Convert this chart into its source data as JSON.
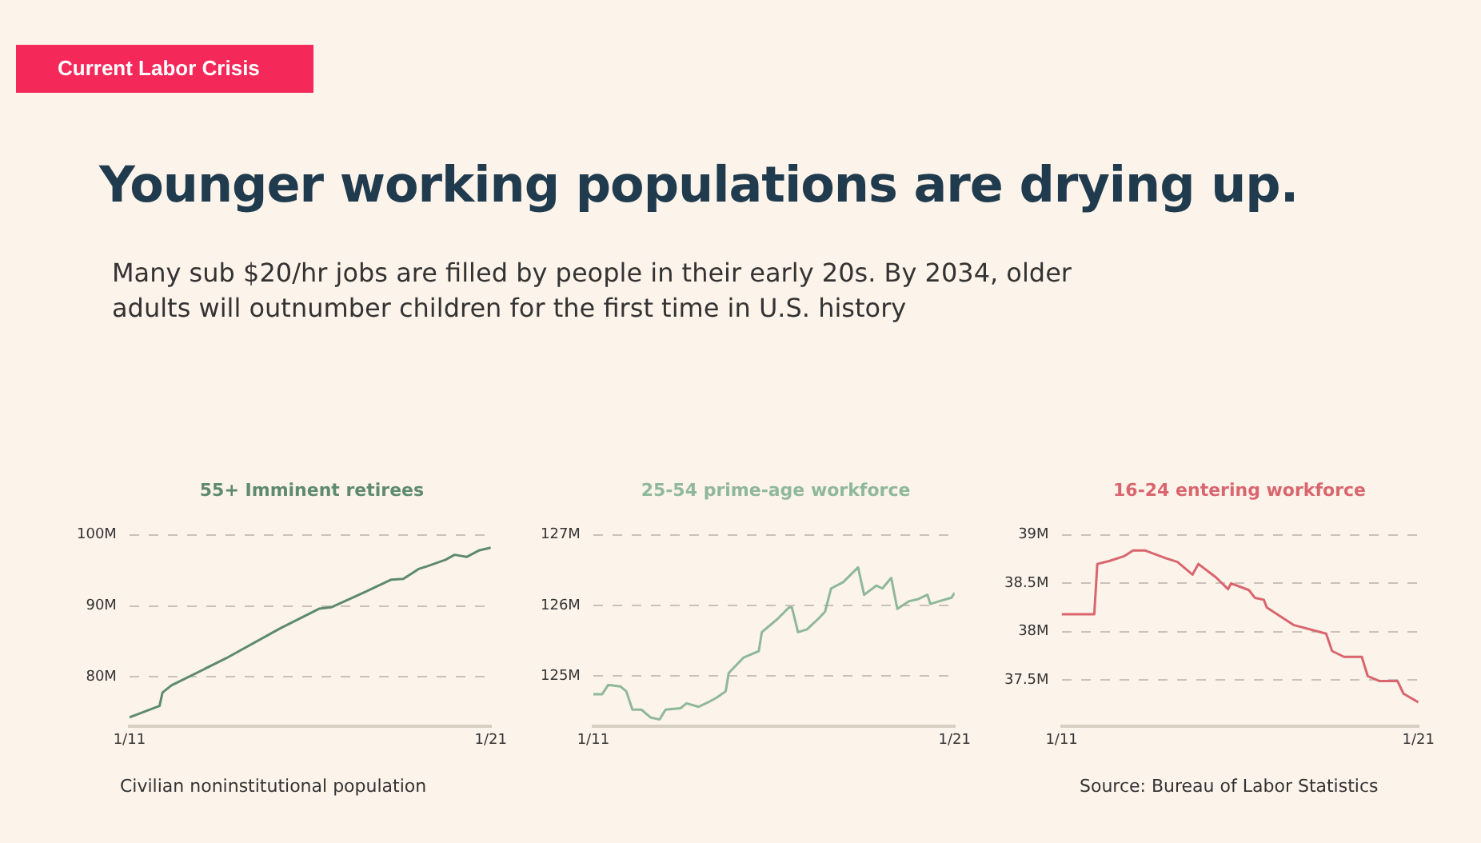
{
  "chart_data": [
    {
      "type": "other",
      "title": "Younger working populations are drying up.",
      "subtitle": "Many sub $20/hr jobs are filled by people in their early 20s. By 2034, older adults will outnumber children for the first time in U.S. history",
      "annotations": [
        "Current Labor Crisis"
      ]
    },
    {
      "type": "line",
      "title": "55+ Imminent retirees",
      "x": [
        "2011-01",
        "2011-11",
        "2011-12",
        "2012-03",
        "2013-09",
        "2015-03",
        "2016-04",
        "2016-08",
        "2017-07",
        "2018-04",
        "2018-08",
        "2019-01",
        "2019-04",
        "2019-10",
        "2020-01",
        "2020-05",
        "2020-09",
        "2021-01"
      ],
      "series": [
        {
          "color": "#5e8a70",
          "values": [
            74.3,
            75.9,
            77.8,
            78.8,
            82.6,
            86.8,
            89.6,
            89.8,
            91.9,
            93.7,
            93.8,
            95.2,
            95.6,
            96.5,
            97.2,
            96.9,
            97.8,
            98.2
          ]
        }
      ],
      "xlim": [
        "2011-01",
        "2021-01"
      ],
      "xticks": [
        {
          "value": "2011-01",
          "label": "1/11"
        },
        {
          "value": "2021-01",
          "label": "1/21"
        }
      ],
      "ylim": [
        73,
        100
      ],
      "yticks": [
        {
          "value": 80,
          "label": "80M"
        },
        {
          "value": 90,
          "label": "90M"
        },
        {
          "value": 100,
          "label": "100M"
        }
      ],
      "grid": "y",
      "legend": false,
      "marker": "none",
      "line_style": "solid",
      "annotations": [
        "Civilian noninstitutional population"
      ]
    },
    {
      "type": "line",
      "title": "25-54 prime-age workforce",
      "x": [
        "2011-01",
        "2011-04",
        "2011-06",
        "2011-10",
        "2011-12",
        "2012-02",
        "2012-05",
        "2012-08",
        "2012-11",
        "2013-01",
        "2013-06",
        "2013-08",
        "2013-12",
        "2014-03",
        "2014-06",
        "2014-09",
        "2014-10",
        "2015-03",
        "2015-08",
        "2015-09",
        "2016-02",
        "2016-06",
        "2016-07",
        "2016-09",
        "2016-12",
        "2017-04",
        "2017-06",
        "2017-08",
        "2017-12",
        "2018-05",
        "2018-07",
        "2018-11",
        "2019-01",
        "2019-04",
        "2019-06",
        "2019-10",
        "2020-01",
        "2020-04",
        "2020-05",
        "2020-08",
        "2020-12",
        "2021-01"
      ],
      "series": [
        {
          "color": "#8fb89a",
          "values": [
            124.74,
            124.74,
            124.87,
            124.85,
            124.78,
            124.52,
            124.52,
            124.41,
            124.38,
            124.52,
            124.54,
            124.61,
            124.56,
            124.62,
            124.69,
            124.78,
            125.04,
            125.26,
            125.35,
            125.62,
            125.8,
            125.97,
            125.97,
            125.62,
            125.66,
            125.82,
            125.91,
            126.24,
            126.33,
            126.54,
            126.15,
            126.28,
            126.24,
            126.39,
            125.95,
            126.06,
            126.09,
            126.15,
            126.02,
            126.06,
            126.11,
            126.18
          ]
        }
      ],
      "xlim": [
        "2011-01",
        "2021-01"
      ],
      "xticks": [
        {
          "value": "2011-01",
          "label": "1/11"
        },
        {
          "value": "2021-01",
          "label": "1/21"
        }
      ],
      "ylim": [
        124.28,
        127
      ],
      "yticks": [
        {
          "value": 125,
          "label": "125M"
        },
        {
          "value": 126,
          "label": "126M"
        },
        {
          "value": 127,
          "label": "127M"
        }
      ],
      "grid": "y",
      "legend": false,
      "marker": "none",
      "line_style": "solid"
    },
    {
      "type": "line",
      "title": "16-24 entering workforce",
      "x": [
        "2011-01",
        "2011-12",
        "2012-01",
        "2012-05",
        "2012-10",
        "2013-01",
        "2013-05",
        "2013-12",
        "2014-04",
        "2014-09",
        "2014-11",
        "2015-05",
        "2015-09",
        "2015-10",
        "2016-04",
        "2016-06",
        "2016-09",
        "2016-10",
        "2017-07",
        "2018-06",
        "2018-08",
        "2018-12",
        "2019-06",
        "2019-08",
        "2019-12",
        "2020-06",
        "2020-08",
        "2021-01"
      ],
      "series": [
        {
          "color": "#d9666e",
          "values": [
            38.18,
            38.18,
            38.7,
            38.73,
            38.78,
            38.84,
            38.84,
            38.76,
            38.72,
            38.59,
            38.7,
            38.56,
            38.44,
            38.5,
            38.43,
            38.35,
            38.33,
            38.25,
            38.07,
            37.98,
            37.8,
            37.74,
            37.74,
            37.54,
            37.49,
            37.49,
            37.36,
            37.27
          ]
        }
      ],
      "xlim": [
        "2011-01",
        "2021-01"
      ],
      "xticks": [
        {
          "value": "2011-01",
          "label": "1/11"
        },
        {
          "value": "2021-01",
          "label": "1/21"
        }
      ],
      "ylim": [
        37.02,
        39
      ],
      "yticks": [
        {
          "value": 37.5,
          "label": "37.5M"
        },
        {
          "value": 38,
          "label": "38M"
        },
        {
          "value": 38.5,
          "label": "38.5M"
        },
        {
          "value": 39,
          "label": "39M"
        }
      ],
      "grid": "y",
      "legend": false,
      "marker": "none",
      "line_style": "solid",
      "annotations": [
        "Source: Bureau of Labor Statistics"
      ]
    }
  ]
}
